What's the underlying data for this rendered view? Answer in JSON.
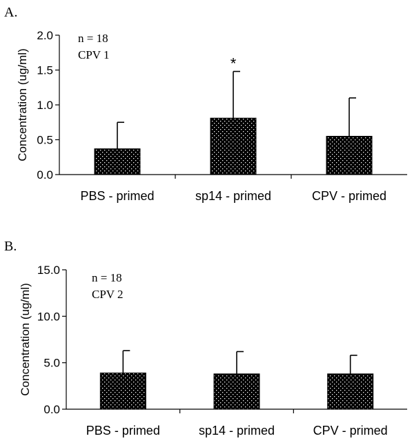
{
  "chart_data": [
    {
      "type": "bar",
      "panel_label": "A.",
      "annotations": [
        "n = 18",
        "CPV 1"
      ],
      "ylabel": "Concentration (ug/ml)",
      "ylim": [
        0,
        2.0
      ],
      "yticks": [
        "0.0",
        "0.5",
        "1.0",
        "1.5",
        "2.0"
      ],
      "categories": [
        "PBS - primed",
        "sp14 - primed",
        "CPV - primed"
      ],
      "values": [
        0.37,
        0.81,
        0.55
      ],
      "errors": [
        0.38,
        0.67,
        0.55
      ],
      "significance": [
        "",
        "*",
        ""
      ]
    },
    {
      "type": "bar",
      "panel_label": "B.",
      "annotations": [
        "n = 18",
        "CPV 2"
      ],
      "ylabel": "Concentration (ug/ml)",
      "ylim": [
        0,
        15.0
      ],
      "yticks": [
        "0.0",
        "5.0",
        "10.0",
        "15.0"
      ],
      "categories": [
        "PBS - primed",
        "sp14 - primed",
        "CPV - primed"
      ],
      "values": [
        3.9,
        3.8,
        3.8
      ],
      "errors": [
        2.4,
        2.4,
        2.0
      ],
      "significance": [
        "",
        "",
        ""
      ]
    }
  ],
  "colors": {
    "bar_fill": "#000000",
    "dots": "#ffffff"
  }
}
